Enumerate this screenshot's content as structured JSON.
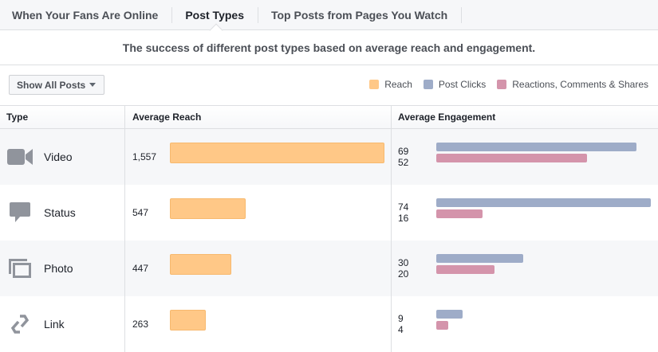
{
  "tabs": [
    {
      "label": "When Your Fans Are Online"
    },
    {
      "label": "Post Types"
    },
    {
      "label": "Top Posts from Pages You Watch"
    }
  ],
  "subtitle": "The success of different post types based on average reach and engagement.",
  "filter": {
    "label": "Show All Posts"
  },
  "colors": {
    "reach": "#ffc887",
    "clicks": "#9eacc8",
    "reactions": "#d494ab"
  },
  "legend": [
    {
      "label": "Reach"
    },
    {
      "label": "Post Clicks"
    },
    {
      "label": "Reactions, Comments & Shares"
    }
  ],
  "table": {
    "headers": [
      "Type",
      "Average Reach",
      "Average Engagement"
    ]
  },
  "chart_data": {
    "type": "bar",
    "categories": [
      "Video",
      "Status",
      "Photo",
      "Link"
    ],
    "icons": [
      "video-icon",
      "speech-bubble-icon",
      "photo-icon",
      "link-icon"
    ],
    "reach_display": [
      "1,557",
      "547",
      "447",
      "263"
    ],
    "series": [
      {
        "name": "Reach",
        "values": [
          1557,
          547,
          447,
          263
        ]
      },
      {
        "name": "Post Clicks",
        "values": [
          69,
          74,
          30,
          9
        ]
      },
      {
        "name": "Reactions, Comments & Shares",
        "values": [
          52,
          16,
          20,
          4
        ]
      }
    ]
  }
}
